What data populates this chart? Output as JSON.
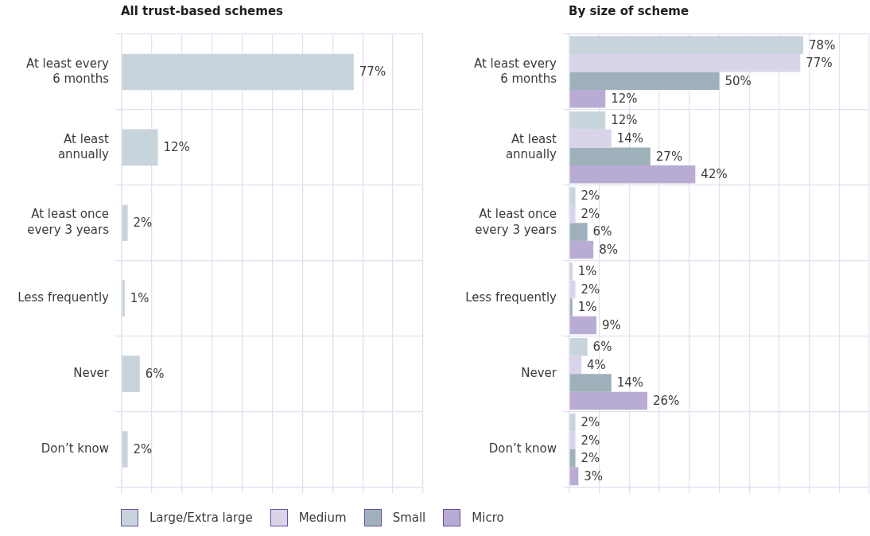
{
  "chart_data": [
    {
      "type": "bar",
      "orientation": "horizontal",
      "title": "All trust-based schemes",
      "categories": [
        "At least every 6 months",
        "At least annually",
        "At least once every 3 years",
        "Less frequently",
        "Never",
        "Don’t know"
      ],
      "values": [
        77,
        12,
        2,
        1,
        6,
        2
      ],
      "color": "#c8d4dc",
      "value_labels": [
        "77%",
        "12%",
        "2%",
        "1%",
        "6%",
        "2%"
      ],
      "xlim": [
        0,
        100
      ],
      "xticks": [
        {
          "value": 0,
          "label": null
        },
        {
          "value": 10,
          "label": null
        },
        {
          "value": 20,
          "label": null
        },
        {
          "value": 30,
          "label": null
        },
        {
          "value": 40,
          "label": null
        },
        {
          "value": 50,
          "label": null
        },
        {
          "value": 60,
          "label": null
        },
        {
          "value": 70,
          "label": null
        },
        {
          "value": 80,
          "label": null
        },
        {
          "value": 90,
          "label": null
        },
        {
          "value": 100,
          "label": null
        }
      ],
      "grid": true,
      "tick_labels": "y"
    },
    {
      "type": "bar",
      "orientation": "horizontal",
      "title": "By size of scheme",
      "categories": [
        "At least every 6 months",
        "At least annually",
        "At least once every 3 years",
        "Less frequently",
        "Never",
        "Don’t know"
      ],
      "series": [
        {
          "name": "Large/Extra large",
          "color": "#c8d4dc",
          "values": [
            78,
            12,
            2,
            1,
            6,
            2
          ],
          "value_labels": [
            "78%",
            "12%",
            "2%",
            "1%",
            "6%",
            "2%"
          ]
        },
        {
          "name": "Medium",
          "color": "#d9d4ea",
          "values": [
            77,
            14,
            2,
            2,
            4,
            2
          ],
          "value_labels": [
            "77%",
            "14%",
            "2%",
            "2%",
            "4%",
            "2%"
          ]
        },
        {
          "name": "Small",
          "color": "#9eb0ba",
          "values": [
            50,
            27,
            6,
            1,
            14,
            2
          ],
          "value_labels": [
            "50%",
            "27%",
            "6%",
            "1%",
            "14%",
            "2%"
          ]
        },
        {
          "name": "Micro",
          "color": "#b8acd4",
          "values": [
            12,
            42,
            8,
            9,
            26,
            3
          ],
          "value_labels": [
            "12%",
            "42%",
            "8%",
            "9%",
            "26%",
            "3%"
          ]
        }
      ],
      "xlim": [
        0,
        100
      ],
      "xticks": [
        {
          "value": 0,
          "label": null
        },
        {
          "value": 10,
          "label": null
        },
        {
          "value": 20,
          "label": null
        },
        {
          "value": 30,
          "label": null
        },
        {
          "value": 40,
          "label": null
        },
        {
          "value": 50,
          "label": null
        },
        {
          "value": 60,
          "label": null
        },
        {
          "value": 70,
          "label": null
        },
        {
          "value": 80,
          "label": null
        },
        {
          "value": 90,
          "label": null
        },
        {
          "value": 100,
          "label": null
        }
      ],
      "grid": true,
      "tick_labels": "y",
      "legend": "bottom"
    }
  ]
}
